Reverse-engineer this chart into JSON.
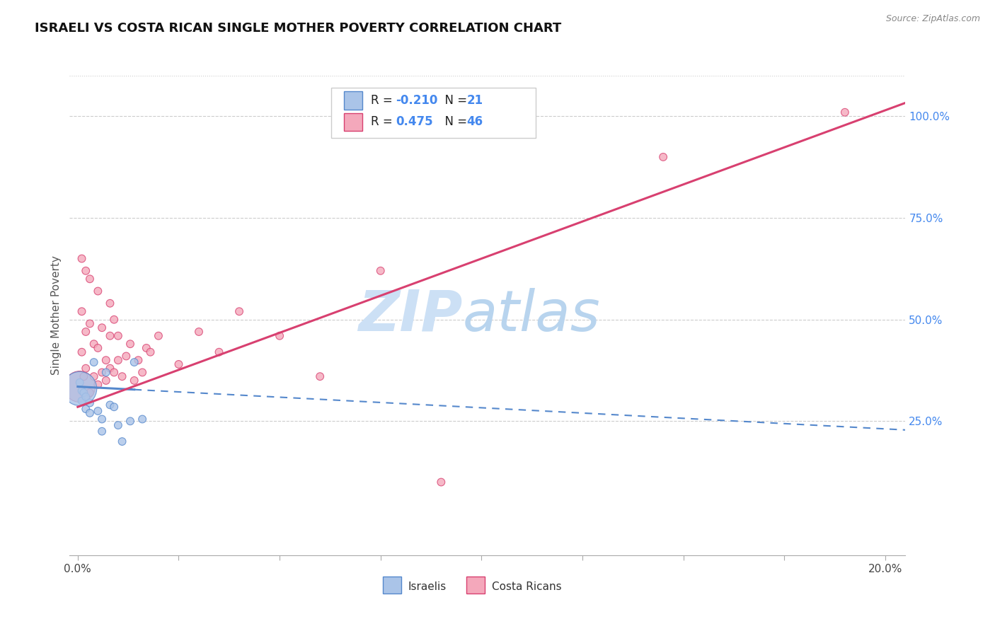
{
  "title": "ISRAELI VS COSTA RICAN SINGLE MOTHER POVERTY CORRELATION CHART",
  "source": "Source: ZipAtlas.com",
  "ylabel": "Single Mother Poverty",
  "xlim": [
    -0.002,
    0.205
  ],
  "ylim": [
    -0.08,
    1.1
  ],
  "R_israeli": -0.21,
  "N_israeli": 21,
  "R_costarican": 0.475,
  "N_costarican": 46,
  "israeli_color": "#aac4e8",
  "costarican_color": "#f4a8bb",
  "trend_israeli_color": "#5588cc",
  "trend_costarican_color": "#d84070",
  "ytick_vals": [
    0.25,
    0.5,
    0.75,
    1.0
  ],
  "ytick_labels": [
    "25.0%",
    "50.0%",
    "75.0%",
    "100.0%"
  ],
  "ytick_color": "#4488ee",
  "watermark_zip_color": "#cce0f5",
  "watermark_atlas_color": "#b8d4ee",
  "legend_label_israeli": "Israelis",
  "legend_label_costarican": "Costa Ricans",
  "isr_x": [
    0.0005,
    0.001,
    0.001,
    0.0015,
    0.002,
    0.002,
    0.003,
    0.003,
    0.004,
    0.005,
    0.006,
    0.006,
    0.007,
    0.008,
    0.009,
    0.01,
    0.011,
    0.013,
    0.014,
    0.016,
    0.0005
  ],
  "isr_y": [
    0.345,
    0.325,
    0.3,
    0.32,
    0.31,
    0.28,
    0.295,
    0.27,
    0.395,
    0.275,
    0.255,
    0.225,
    0.37,
    0.29,
    0.285,
    0.24,
    0.2,
    0.25,
    0.395,
    0.255,
    0.33
  ],
  "isr_sizes": [
    60,
    60,
    60,
    60,
    60,
    60,
    60,
    60,
    60,
    60,
    60,
    60,
    60,
    60,
    60,
    60,
    60,
    60,
    60,
    60,
    1200
  ],
  "cr_x": [
    0.0005,
    0.001,
    0.001,
    0.001,
    0.0015,
    0.002,
    0.002,
    0.002,
    0.003,
    0.003,
    0.003,
    0.004,
    0.004,
    0.005,
    0.005,
    0.005,
    0.006,
    0.006,
    0.007,
    0.007,
    0.008,
    0.008,
    0.008,
    0.009,
    0.009,
    0.01,
    0.01,
    0.011,
    0.012,
    0.013,
    0.014,
    0.015,
    0.016,
    0.017,
    0.018,
    0.02,
    0.025,
    0.03,
    0.035,
    0.04,
    0.05,
    0.06,
    0.075,
    0.09,
    0.145,
    0.19
  ],
  "cr_y": [
    0.335,
    0.42,
    0.52,
    0.65,
    0.36,
    0.38,
    0.47,
    0.62,
    0.32,
    0.49,
    0.6,
    0.36,
    0.44,
    0.34,
    0.43,
    0.57,
    0.37,
    0.48,
    0.35,
    0.4,
    0.38,
    0.46,
    0.54,
    0.37,
    0.5,
    0.4,
    0.46,
    0.36,
    0.41,
    0.44,
    0.35,
    0.4,
    0.37,
    0.43,
    0.42,
    0.46,
    0.39,
    0.47,
    0.42,
    0.52,
    0.46,
    0.36,
    0.62,
    0.1,
    0.9,
    1.01
  ],
  "cr_sizes": [
    1000,
    60,
    60,
    60,
    60,
    60,
    60,
    60,
    60,
    60,
    60,
    60,
    60,
    60,
    60,
    60,
    60,
    60,
    60,
    60,
    60,
    60,
    60,
    60,
    60,
    60,
    60,
    60,
    60,
    60,
    60,
    60,
    60,
    60,
    60,
    60,
    60,
    60,
    60,
    60,
    60,
    60,
    60,
    60,
    60,
    60
  ],
  "isr_trend_x0": 0.0,
  "isr_trend_x_solid_end": 0.014,
  "isr_trend_x1": 0.205,
  "isr_slope": -0.52,
  "isr_intercept": 0.335,
  "cr_slope": 3.65,
  "cr_intercept": 0.285
}
